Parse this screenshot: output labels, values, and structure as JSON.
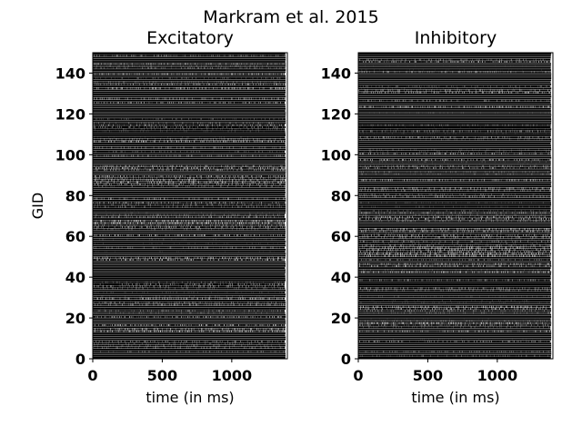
{
  "figure": {
    "suptitle": "Markram et al. 2015"
  },
  "chart_data": [
    {
      "type": "scatter",
      "subtype": "raster",
      "title": "Excitatory",
      "xlabel": "time (in ms)",
      "ylabel": "GID",
      "xlim": [
        0,
        1400
      ],
      "ylim": [
        0,
        150
      ],
      "xticks": [
        0,
        500,
        1000
      ],
      "yticks": [
        0,
        20,
        40,
        60,
        80,
        100,
        120,
        140
      ],
      "xtick_labels": [
        "0",
        "500",
        "1000"
      ],
      "ytick_labels": [
        "0",
        "20",
        "40",
        "60",
        "80",
        "100",
        "120",
        "140"
      ],
      "n_neurons": 150,
      "dense_rows": [
        4,
        10,
        17,
        25,
        31,
        39,
        45,
        53,
        61,
        62,
        68,
        77,
        83,
        91,
        98,
        104,
        109,
        118,
        119,
        120,
        121,
        122,
        123,
        128,
        133,
        140,
        146
      ],
      "marker_color": "#000000",
      "grid": false
    },
    {
      "type": "scatter",
      "subtype": "raster",
      "title": "Inhibitory",
      "xlabel": "time (in ms)",
      "ylabel": "",
      "xlim": [
        0,
        1400
      ],
      "ylim": [
        0,
        150
      ],
      "xticks": [
        0,
        500,
        1000
      ],
      "yticks": [
        0,
        20,
        40,
        60,
        80,
        100,
        120,
        140
      ],
      "xtick_labels": [
        "0",
        "500",
        "1000"
      ],
      "ytick_labels": [
        "0",
        "20",
        "40",
        "60",
        "80",
        "100",
        "120",
        "140"
      ],
      "n_neurons": 150,
      "dense_rows": [
        5,
        6,
        29,
        47,
        64,
        85,
        86,
        104,
        116,
        117,
        118,
        119,
        129,
        138,
        148
      ],
      "marker_color": "#000000",
      "grid": false
    }
  ]
}
